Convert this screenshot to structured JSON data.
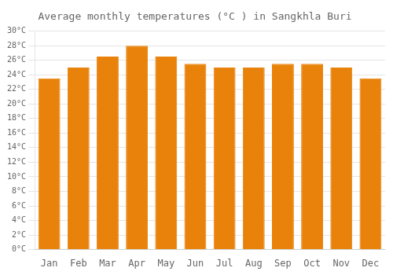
{
  "chart_data": {
    "type": "bar",
    "title": "Average monthly temperatures (°C ) in Sangkhla Buri",
    "categories": [
      "Jan",
      "Feb",
      "Mar",
      "Apr",
      "May",
      "Jun",
      "Jul",
      "Aug",
      "Sep",
      "Oct",
      "Nov",
      "Dec"
    ],
    "values": [
      23.5,
      25.0,
      26.5,
      28.0,
      26.5,
      25.5,
      25.0,
      25.0,
      25.5,
      25.5,
      25.0,
      23.5
    ],
    "color": "#E8820A",
    "ylim": [
      0,
      30
    ],
    "yticks": [
      {
        "value": 0,
        "label": "0°C"
      },
      {
        "value": 2,
        "label": "2°C"
      },
      {
        "value": 4,
        "label": "4°C"
      },
      {
        "value": 6,
        "label": "6°C"
      },
      {
        "value": 8,
        "label": "8°C"
      },
      {
        "value": 10,
        "label": "10°C"
      },
      {
        "value": 12,
        "label": "12°C"
      },
      {
        "value": 14,
        "label": "14°C"
      },
      {
        "value": 16,
        "label": "16°C"
      },
      {
        "value": 18,
        "label": "18°C"
      },
      {
        "value": 20,
        "label": "20°C"
      },
      {
        "value": 22,
        "label": "22°C"
      },
      {
        "value": 24,
        "label": "24°C"
      },
      {
        "value": 26,
        "label": "26°C"
      },
      {
        "value": 28,
        "label": "28°C"
      },
      {
        "value": 30,
        "label": "30°C"
      }
    ],
    "grid": true
  }
}
